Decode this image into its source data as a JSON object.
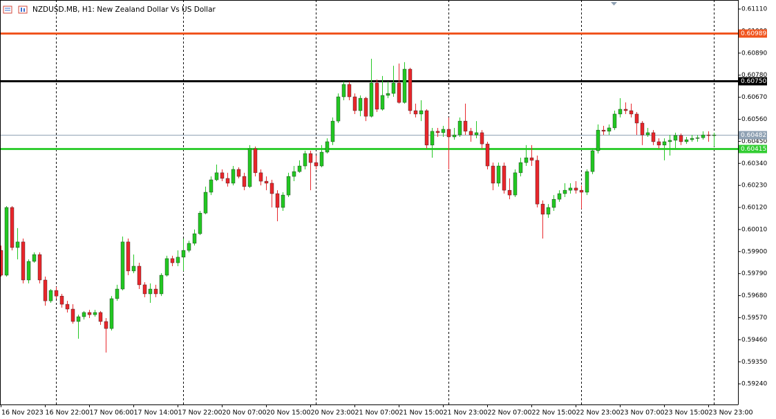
{
  "chart_data": {
    "type": "candlestick",
    "title": "NZDUSD.MB, H1:  New Zealand Dollar Vs US Dollar",
    "categories": [
      "16 Nov 2023",
      null,
      null,
      null,
      null,
      null,
      null,
      null,
      "16 Nov 22:00",
      null,
      null,
      null,
      null,
      null,
      null,
      null,
      "17 Nov 06:00",
      null,
      null,
      null,
      null,
      null,
      null,
      null,
      "17 Nov 14:00",
      null,
      null,
      null,
      null,
      null,
      null,
      null,
      "17 Nov 22:00",
      null,
      null,
      null,
      null,
      null,
      null,
      null,
      "20 Nov 07:00",
      null,
      null,
      null,
      null,
      null,
      null,
      null,
      "20 Nov 15:00",
      null,
      null,
      null,
      null,
      null,
      null,
      null,
      "20 Nov 23:00",
      null,
      null,
      null,
      null,
      null,
      null,
      null,
      "21 Nov 07:00",
      null,
      null,
      null,
      null,
      null,
      null,
      null,
      "21 Nov 15:00",
      null,
      null,
      null,
      null,
      null,
      null,
      null,
      "21 Nov 23:00",
      null,
      null,
      null,
      null,
      null,
      null,
      null,
      "22 Nov 07:00",
      null,
      null,
      null,
      null,
      null,
      null,
      null,
      "22 Nov 15:00",
      null,
      null,
      null,
      null,
      null,
      null,
      null,
      "22 Nov 23:00",
      null,
      null,
      null,
      null,
      null,
      null,
      null,
      "23 Nov 07:00",
      null,
      null,
      null,
      null,
      null,
      null,
      null,
      "23 Nov 15:00",
      null,
      null,
      null,
      null,
      null,
      null,
      null,
      "23 Nov 23:00",
      null
    ],
    "open": [
      0.59906,
      0.59782,
      0.6012,
      0.5992,
      0.59948,
      0.59758,
      0.59851,
      0.59885,
      0.59758,
      0.59654,
      0.59706,
      0.59678,
      0.59637,
      0.59613,
      0.59551,
      0.59575,
      0.59596,
      0.59585,
      0.59596,
      0.59551,
      0.59516,
      0.59665,
      0.59713,
      0.59948,
      0.59803,
      0.59827,
      0.59734,
      0.59689,
      0.59713,
      0.59689,
      0.59782,
      0.59865,
      0.59844,
      0.59872,
      0.59906,
      0.59941,
      0.59989,
      0.60092,
      0.60196,
      0.60258,
      0.60293,
      0.60265,
      0.60241,
      0.6031,
      0.60275,
      0.60224,
      0.60413,
      0.60293,
      0.60251,
      0.60241,
      0.60189,
      0.6012,
      0.60182,
      0.60275,
      0.60299,
      0.60327,
      0.60389,
      0.60344,
      0.60327,
      0.60396,
      0.60448,
      0.60551,
      0.60672,
      0.60734,
      0.60672,
      0.60603,
      0.60665,
      0.60575,
      0.60741,
      0.6061,
      0.60679,
      0.60689,
      0.60741,
      0.60644,
      0.6081,
      0.60603,
      0.60586,
      0.60603,
      0.60431,
      0.605,
      0.60493,
      0.6051,
      0.60472,
      0.60482,
      0.60551,
      0.605,
      0.60482,
      0.60493,
      0.60437,
      0.60327,
      0.60241,
      0.60327,
      0.60206,
      0.60182,
      0.60293,
      0.60344,
      0.60368,
      0.60355,
      0.60137,
      0.60086,
      0.6012,
      0.60161,
      0.60189,
      0.60206,
      0.60217,
      0.60206,
      0.60196,
      0.60299,
      0.60403,
      0.60506,
      0.605,
      0.60517,
      0.60586,
      0.6061,
      0.60603,
      0.60586,
      0.60541,
      0.60482,
      0.60493,
      0.60448,
      0.60431,
      0.60448,
      0.60455,
      0.60479,
      0.60448,
      0.60458,
      0.60465,
      0.60468,
      0.60482,
      0.60479
    ],
    "high": [
      0.5993,
      0.60127,
      0.60127,
      0.60017,
      0.59965,
      0.59861,
      0.59896,
      0.59896,
      0.59775,
      0.59713,
      0.59723,
      0.59689,
      0.59654,
      0.59637,
      0.59585,
      0.59603,
      0.59609,
      0.59609,
      0.59603,
      0.59568,
      0.59678,
      0.59734,
      0.59975,
      0.59965,
      0.59885,
      0.59844,
      0.59747,
      0.59741,
      0.59734,
      0.59792,
      0.59879,
      0.59879,
      0.59906,
      0.59965,
      0.59954,
      0.6001,
      0.60103,
      0.60224,
      0.60275,
      0.60334,
      0.6031,
      0.60293,
      0.60327,
      0.6032,
      0.60293,
      0.60431,
      0.60424,
      0.6031,
      0.60275,
      0.60258,
      0.60206,
      0.60196,
      0.60293,
      0.60327,
      0.60355,
      0.60403,
      0.60403,
      0.60379,
      0.60431,
      0.60465,
      0.60569,
      0.60689,
      0.60748,
      0.60748,
      0.60689,
      0.60679,
      0.60672,
      0.60862,
      0.60758,
      0.60776,
      0.60748,
      0.60827,
      0.60838,
      0.60845,
      0.60817,
      0.60638,
      0.60655,
      0.6061,
      0.60517,
      0.60517,
      0.60527,
      0.60569,
      0.60517,
      0.60569,
      0.60638,
      0.60517,
      0.60551,
      0.60506,
      0.60448,
      0.60344,
      0.60344,
      0.60344,
      0.60265,
      0.6031,
      0.60368,
      0.60431,
      0.60431,
      0.60379,
      0.60155,
      0.60137,
      0.60182,
      0.60206,
      0.60241,
      0.60241,
      0.60251,
      0.6023,
      0.6031,
      0.60413,
      0.60534,
      0.60527,
      0.60534,
      0.60603,
      0.60665,
      0.60644,
      0.60638,
      0.60596,
      0.60551,
      0.60517,
      0.60506,
      0.60465,
      0.60465,
      0.60482,
      0.60493,
      0.60489,
      0.60472,
      0.60482,
      0.60482,
      0.605,
      0.605,
      0.60493
    ],
    "low": [
      0.59775,
      0.59775,
      0.59906,
      0.59861,
      0.59741,
      0.59741,
      0.59844,
      0.59741,
      0.5963,
      0.59644,
      0.59665,
      0.5962,
      0.59596,
      0.5954,
      0.59465,
      0.59561,
      0.59568,
      0.59575,
      0.59534,
      0.59396,
      0.59506,
      0.59654,
      0.59706,
      0.59782,
      0.59792,
      0.59713,
      0.59672,
      0.59644,
      0.59672,
      0.59678,
      0.59775,
      0.59827,
      0.59827,
      0.59803,
      0.59896,
      0.5993,
      0.59982,
      0.60086,
      0.60182,
      0.60251,
      0.60251,
      0.60224,
      0.6023,
      0.60265,
      0.60206,
      0.60217,
      0.60275,
      0.6023,
      0.60206,
      0.6012,
      0.60051,
      0.60103,
      0.60172,
      0.60251,
      0.60293,
      0.6031,
      0.60206,
      0.6031,
      0.6032,
      0.60389,
      0.60431,
      0.60541,
      0.60655,
      0.60655,
      0.60586,
      0.60575,
      0.60551,
      0.60569,
      0.60596,
      0.60603,
      0.60665,
      0.60672,
      0.60638,
      0.60638,
      0.60586,
      0.60569,
      0.60551,
      0.60413,
      0.60368,
      0.60472,
      0.60472,
      0.6031,
      0.60458,
      0.60472,
      0.60482,
      0.60448,
      0.60465,
      0.60413,
      0.6031,
      0.60206,
      0.60224,
      0.60189,
      0.60161,
      0.60172,
      0.60275,
      0.60327,
      0.60327,
      0.6012,
      0.59965,
      0.60068,
      0.60103,
      0.60148,
      0.60172,
      0.60189,
      0.60189,
      0.60113,
      0.60182,
      0.60286,
      0.60389,
      0.60482,
      0.60482,
      0.60506,
      0.60569,
      0.60586,
      0.60569,
      0.60482,
      0.60431,
      0.60472,
      0.60431,
      0.60413,
      0.60355,
      0.60379,
      0.60413,
      0.60431,
      0.60437,
      0.60448,
      0.60448,
      0.60458,
      0.60448,
      0.60424
    ],
    "close": [
      0.59782,
      0.6012,
      0.5992,
      0.59948,
      0.59758,
      0.59851,
      0.59885,
      0.59758,
      0.59654,
      0.59706,
      0.59678,
      0.59637,
      0.59613,
      0.59551,
      0.59575,
      0.59596,
      0.59585,
      0.59596,
      0.59551,
      0.59516,
      0.59665,
      0.59713,
      0.59948,
      0.59803,
      0.59827,
      0.59734,
      0.59689,
      0.59713,
      0.59689,
      0.59782,
      0.59865,
      0.59844,
      0.59872,
      0.59906,
      0.59941,
      0.59989,
      0.60092,
      0.60196,
      0.60258,
      0.60293,
      0.60265,
      0.60241,
      0.6031,
      0.60275,
      0.60224,
      0.60413,
      0.60293,
      0.60251,
      0.60241,
      0.60189,
      0.6012,
      0.60182,
      0.60275,
      0.60299,
      0.60327,
      0.60389,
      0.60344,
      0.60327,
      0.60396,
      0.60448,
      0.60551,
      0.60672,
      0.60734,
      0.60672,
      0.60603,
      0.60665,
      0.60575,
      0.60741,
      0.6061,
      0.60679,
      0.60689,
      0.60741,
      0.60644,
      0.6081,
      0.60603,
      0.60586,
      0.60603,
      0.60431,
      0.605,
      0.60493,
      0.6051,
      0.60472,
      0.60482,
      0.60551,
      0.605,
      0.60482,
      0.60493,
      0.60437,
      0.60327,
      0.60241,
      0.60327,
      0.60206,
      0.60182,
      0.60293,
      0.60344,
      0.60368,
      0.60355,
      0.60137,
      0.60086,
      0.6012,
      0.60161,
      0.60189,
      0.60206,
      0.60217,
      0.60206,
      0.60196,
      0.60299,
      0.60403,
      0.60506,
      0.605,
      0.60517,
      0.60586,
      0.6061,
      0.60603,
      0.60586,
      0.60541,
      0.60482,
      0.60493,
      0.60448,
      0.60431,
      0.60448,
      0.60455,
      0.60479,
      0.60448,
      0.60458,
      0.60465,
      0.60468,
      0.60482,
      0.60479,
      0.60482
    ],
    "up_color": "#22c722",
    "down_color": "#e8262b",
    "ylim": [
      0.59137,
      0.61155
    ],
    "yticks": [
      {
        "value": 0.6111,
        "label": "0.61110"
      },
      {
        "value": 0.61,
        "label": "0.61000"
      },
      {
        "value": 0.6089,
        "label": "0.60890"
      },
      {
        "value": 0.6078,
        "label": "0.60780"
      },
      {
        "value": 0.6067,
        "label": "0.60670"
      },
      {
        "value": 0.6056,
        "label": "0.60560"
      },
      {
        "value": 0.6045,
        "label": "0.60450"
      },
      {
        "value": 0.6034,
        "label": "0.60340"
      },
      {
        "value": 0.6023,
        "label": "0.60230"
      },
      {
        "value": 0.6012,
        "label": "0.60120"
      },
      {
        "value": 0.6001,
        "label": "0.60010"
      },
      {
        "value": 0.599,
        "label": "0.59900"
      },
      {
        "value": 0.5979,
        "label": "0.59790"
      },
      {
        "value": 0.5968,
        "label": "0.59680"
      },
      {
        "value": 0.5957,
        "label": "0.59570"
      },
      {
        "value": 0.5946,
        "label": "0.59460"
      },
      {
        "value": 0.5935,
        "label": "0.59350"
      },
      {
        "value": 0.5924,
        "label": "0.59240"
      }
    ],
    "levels": [
      {
        "value": 0.60989,
        "color": "#f0541e"
      },
      {
        "value": 0.6075,
        "label": "0.60750",
        "color": "#000000"
      },
      {
        "value": 0.60482,
        "color": "#8fa1b3"
      },
      {
        "value": 0.60415,
        "color": "#32cd32"
      }
    ]
  }
}
